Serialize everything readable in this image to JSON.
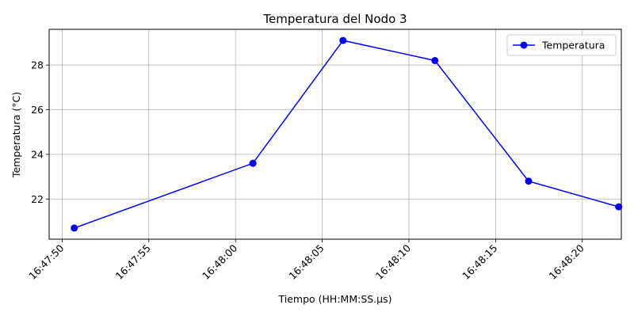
{
  "chart_data": {
    "type": "line",
    "title": "Temperatura del Nodo 3",
    "xlabel": "Tiempo (HH:MM:SS.µs)",
    "ylabel": "Temperatura (°C)",
    "x_tick_labels": [
      "16:47:50",
      "16:47:55",
      "16:48:00",
      "16:48:05",
      "16:48:10",
      "16:48:15",
      "16:48:20"
    ],
    "x_tick_values": [
      0,
      5,
      10,
      15,
      20,
      25,
      30
    ],
    "xlim": [
      -0.75,
      32.25
    ],
    "y_ticks": [
      22,
      24,
      26,
      28
    ],
    "ylim": [
      20.2,
      29.6
    ],
    "grid": true,
    "legend_position": "top-right",
    "series": [
      {
        "name": "Temperatura",
        "color": "#0000ff",
        "marker": "circle",
        "x": [
          "16:47:50.7",
          "16:48:01.0",
          "16:48:06.2",
          "16:48:11.5",
          "16:48:16.9",
          "16:48:22.1"
        ],
        "x_seconds": [
          0.7,
          11.0,
          16.2,
          21.5,
          26.9,
          32.1
        ],
        "values": [
          20.7,
          23.6,
          29.1,
          28.2,
          22.8,
          21.65
        ]
      }
    ]
  }
}
